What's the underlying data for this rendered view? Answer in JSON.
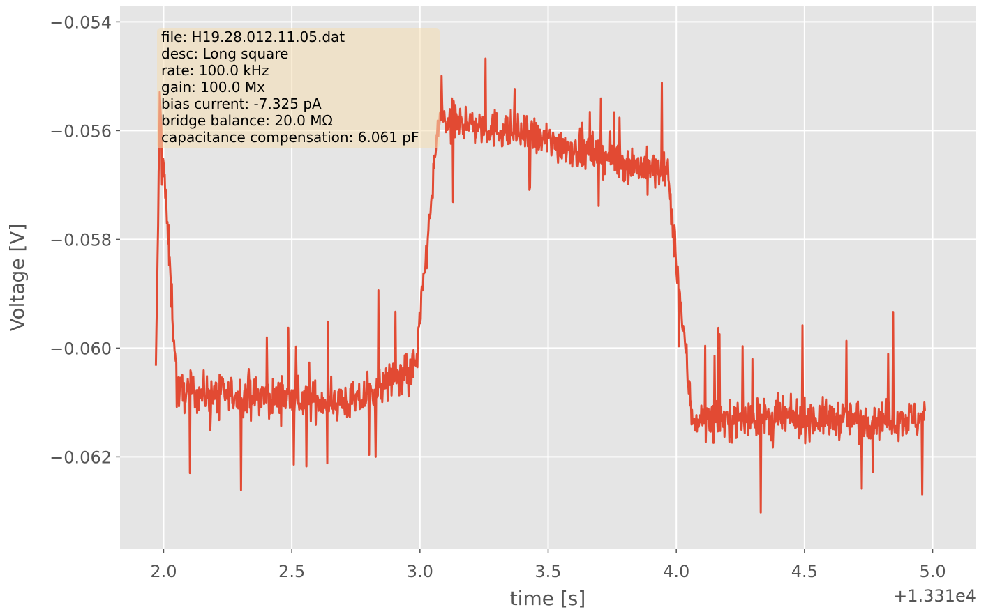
{
  "chart_data": {
    "type": "line",
    "xlabel": "time [s]",
    "ylabel": "Voltage [V]",
    "x_offset_label": "+1.331e4",
    "xlim": [
      1.83,
      5.17
    ],
    "ylim": [
      -0.0637,
      -0.0537
    ],
    "xticks": [
      2.0,
      2.5,
      3.0,
      3.5,
      4.0,
      4.5,
      5.0
    ],
    "xtick_labels": [
      "2.0",
      "2.5",
      "3.0",
      "3.5",
      "4.0",
      "4.5",
      "5.0"
    ],
    "yticks": [
      -0.054,
      -0.056,
      -0.058,
      -0.06,
      -0.062
    ],
    "ytick_labels": [
      "−0.054",
      "−0.056",
      "−0.058",
      "−0.060",
      "−0.062"
    ],
    "grid": true,
    "style": "ggplot",
    "series": [
      {
        "color": "#E24A33",
        "segments": [
          {
            "x0": 1.97,
            "x1": 1.985,
            "y0": -0.0605,
            "y1": -0.0555
          },
          {
            "x0": 1.985,
            "x1": 2.05,
            "y0": -0.0555,
            "y1": -0.0605
          },
          {
            "x0": 2.05,
            "x1": 2.75,
            "y0": -0.0608,
            "y1": -0.061
          },
          {
            "x0": 2.75,
            "x1": 2.99,
            "y0": -0.061,
            "y1": -0.0603
          },
          {
            "x0": 2.99,
            "x1": 3.07,
            "y0": -0.06,
            "y1": -0.056
          },
          {
            "x0": 3.07,
            "x1": 3.35,
            "y0": -0.0558,
            "y1": -0.056
          },
          {
            "x0": 3.35,
            "x1": 3.97,
            "y0": -0.056,
            "y1": -0.0568
          },
          {
            "x0": 3.97,
            "x1": 4.06,
            "y0": -0.057,
            "y1": -0.0612
          },
          {
            "x0": 4.06,
            "x1": 4.97,
            "y0": -0.0613,
            "y1": -0.0613
          }
        ],
        "noise_amplitude": 0.0006,
        "spike_amplitude": 0.0018,
        "samples": 1400
      }
    ]
  },
  "annotation": {
    "lines": [
      "file: H19.28.012.11.05.dat",
      "desc: Long square",
      "rate: 100.0 kHz",
      "gain: 100.0 Mx",
      "bias current: -7.325 pA",
      "bridge balance: 20.0 MΩ",
      "capacitance compensation: 6.061 pF"
    ],
    "box_color": "#F5DEB3"
  },
  "colors": {
    "plot_bg": "#E5E5E5",
    "grid": "#FFFFFF",
    "text": "#555555"
  }
}
